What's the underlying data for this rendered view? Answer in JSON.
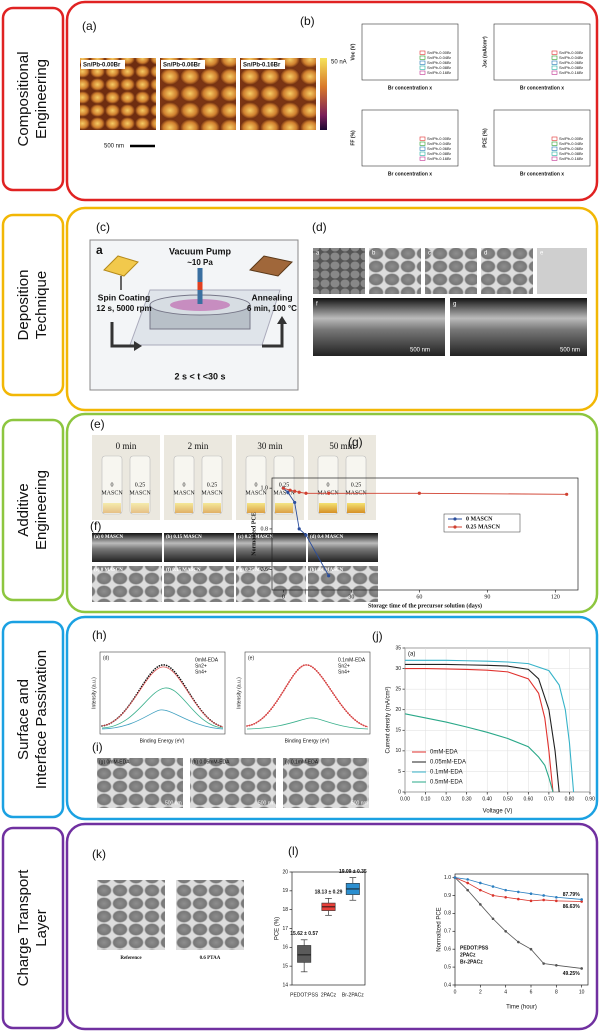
{
  "sections": [
    {
      "label": [
        "Compositional",
        "Engineering"
      ],
      "color": "#e02222"
    },
    {
      "label": [
        "Deposition",
        "Technique"
      ],
      "color": "#f2b705"
    },
    {
      "label": [
        "Additive",
        "Engineering"
      ],
      "color": "#8dc63f"
    },
    {
      "label": [
        "Surface and",
        "Interface Passivation"
      ],
      "color": "#1ba1e2"
    },
    {
      "label": [
        "Charge Transport",
        "Layer"
      ],
      "color": "#7030a0"
    }
  ],
  "panels": {
    "a": {
      "letter": "(a)",
      "images": [
        "Sn/Pb-0.00Br",
        "Sn/Pb-0.06Br",
        "Sn/Pb-0.16Br"
      ],
      "scale_bar": "500 nm",
      "colorbar": "50 nA"
    },
    "b": {
      "letter": "(b)",
      "y_labels": [
        "Voc (V)",
        "Jsc (mA/cm²)",
        "FF (%)",
        "PCE (%)"
      ],
      "x_label": "Br concentration x",
      "legend": [
        "Sn/Pb-0.00Br",
        "Sn/Pb-0.04Br",
        "Sn/Pb-0.06Br",
        "Sn/Pb-0.08Br",
        "Sn/Pb-0.16Br"
      ],
      "legend_colors": [
        "#e03030",
        "#2ca02c",
        "#1f77b4",
        "#20b0a0",
        "#c03090"
      ]
    },
    "c": {
      "letter": "(c)",
      "tag": "a",
      "pump": "Vacuum Pump",
      "pressure": "~10 Pa",
      "step1": "Spin Coating",
      "step1_detail": "12 s, 5000 rpm",
      "step2": "Annealing",
      "step2_detail": "6 min, 100 °C",
      "time": "2 s < t <30 s"
    },
    "d": {
      "letter": "(d)",
      "tags": [
        "a",
        "b",
        "c",
        "d",
        "e",
        "f",
        "g"
      ],
      "scale_bar": "500 nm"
    },
    "e": {
      "letter": "(e)",
      "tag": "(a)",
      "times": [
        "0 min",
        "2 min",
        "30 min",
        "50 min"
      ],
      "vials": [
        "0",
        "0.25"
      ],
      "unit": "MASCN"
    },
    "f": {
      "letter": "(f)",
      "images": [
        "(a) 0 MASCN",
        "(b) 0.15 MASCN",
        "(c) 0.25 MASCN",
        "(d) 0.4 MASCN",
        "(e) 0 MASCN",
        "(f) 0.15 MASCN",
        "(g) 0.25 MASCN",
        "(h) 0.4 MASCN"
      ]
    },
    "g": {
      "letter": "(g)"
    },
    "h": {
      "letter": "(h)",
      "tags": [
        "(d)",
        "(e)"
      ],
      "legends": [
        [
          "0mM-EDA",
          "Sn2+",
          "Sn4+"
        ],
        [
          "0.1mM-EDA",
          "Sn2+",
          "Sn4+"
        ]
      ],
      "x_label": "Binding Energy (eV)",
      "y_label": "Intensity (a.u.)"
    },
    "i": {
      "letter": "(i)",
      "images": [
        "(g) 0mM-EDA",
        "(h) 0.05mM-EDA",
        "(i) 0.1mM-EDA"
      ],
      "scale_bar": "500 nm"
    },
    "j": {
      "letter": "(j)"
    },
    "k": {
      "letter": "(k)",
      "images": [
        "Reference",
        "0.6 PTAA"
      ]
    },
    "l": {
      "letter": "(l)"
    }
  },
  "chart_data": [
    {
      "type": "line",
      "x_label": "Storage time of the precursor solution (days)",
      "y_label": "Normalized PCE",
      "xlim": [
        -5,
        130
      ],
      "ylim": [
        0.5,
        1.05
      ],
      "xticks": [
        0,
        30,
        60,
        90,
        120
      ],
      "yticks": [
        0.6,
        0.8,
        {
          "value": 1.0,
          "label": "1.0"
        }
      ],
      "series": [
        {
          "name": "0 MASCN",
          "color": "#2a4d9c",
          "x": [
            0,
            2,
            5,
            7,
            10,
            20
          ],
          "values": [
            1.0,
            0.98,
            0.93,
            0.8,
            0.77,
            0.57
          ]
        },
        {
          "name": "0.25 MASCN",
          "color": "#d04030",
          "x": [
            0,
            3,
            5,
            7,
            10,
            20,
            60,
            125
          ],
          "values": [
            1.0,
            0.99,
            0.985,
            0.98,
            0.975,
            0.975,
            0.975,
            0.97
          ]
        }
      ]
    },
    {
      "type": "line",
      "tag": "(a)",
      "x_label": "Voltage (V)",
      "y_label": "Current density (mA/cm²)",
      "xlim": [
        0,
        0.9
      ],
      "ylim": [
        0,
        35
      ],
      "xticks": [
        {
          "value": 0,
          "label": "0.00"
        },
        {
          "value": 0.1,
          "label": "0.10"
        },
        {
          "value": 0.2,
          "label": "0.20"
        },
        {
          "value": 0.3,
          "label": "0.30"
        },
        {
          "value": 0.4,
          "label": "0.40"
        },
        {
          "value": 0.5,
          "label": "0.50"
        },
        {
          "value": 0.6,
          "label": "0.60"
        },
        {
          "value": 0.7,
          "label": "0.70"
        },
        {
          "value": 0.8,
          "label": "0.80"
        },
        {
          "value": 0.9,
          "label": "0.90"
        }
      ],
      "yticks": [
        0,
        5,
        10,
        15,
        20,
        25,
        30,
        35
      ],
      "series": [
        {
          "name": "0mM-EDA",
          "color": "#e0312d",
          "x": [
            0,
            0.1,
            0.2,
            0.3,
            0.4,
            0.5,
            0.6,
            0.65,
            0.68,
            0.7,
            0.72
          ],
          "values": [
            30,
            30,
            29.9,
            29.8,
            29.6,
            29.2,
            27.5,
            24,
            18,
            10,
            0
          ]
        },
        {
          "name": "0.05mM-EDA",
          "color": "#222222",
          "x": [
            0,
            0.1,
            0.2,
            0.3,
            0.4,
            0.5,
            0.6,
            0.65,
            0.7,
            0.73,
            0.75
          ],
          "values": [
            31,
            31,
            31,
            30.9,
            30.8,
            30.6,
            29.8,
            27.5,
            20,
            10,
            0
          ]
        },
        {
          "name": "0.1mM-EDA",
          "color": "#36b3c9",
          "x": [
            0,
            0.1,
            0.2,
            0.3,
            0.4,
            0.5,
            0.6,
            0.7,
            0.75,
            0.78,
            0.8,
            0.82
          ],
          "values": [
            32,
            32,
            32,
            31.9,
            31.8,
            31.6,
            31.2,
            29.5,
            26,
            20,
            12,
            0
          ]
        },
        {
          "name": "0.5mM-EDA",
          "color": "#2aa889",
          "x": [
            0,
            0.1,
            0.2,
            0.3,
            0.4,
            0.5,
            0.6,
            0.65,
            0.68,
            0.7,
            0.72
          ],
          "values": [
            19,
            18,
            17,
            15.8,
            14.5,
            13,
            11,
            8.5,
            6.5,
            3.5,
            0
          ]
        }
      ]
    },
    {
      "type": "box",
      "y_label": "PCE (%)",
      "categories": [
        "PEDOT:PSS",
        "2PACz",
        "Br-2PACz"
      ],
      "ylim": [
        14,
        20
      ],
      "yticks": [
        14,
        15,
        16,
        17,
        18,
        19,
        20
      ],
      "colors": [
        "#5a5a5a",
        "#e8403a",
        "#2b8fd0"
      ],
      "boxes": [
        {
          "min": 14.7,
          "q1": 15.2,
          "median": 15.6,
          "q3": 16.1,
          "max": 16.4
        },
        {
          "min": 17.7,
          "q1": 17.95,
          "median": 18.15,
          "q3": 18.35,
          "max": 18.6
        },
        {
          "min": 18.5,
          "q1": 18.8,
          "median": 19.1,
          "q3": 19.4,
          "max": 19.7
        }
      ],
      "annotations": [
        "15.62 ± 0.57",
        "18.13 ± 0.29",
        "19.09 ± 0.35"
      ]
    },
    {
      "type": "line",
      "x_label": "Time (hour)",
      "y_label": "Normalized PCE",
      "xlim": [
        0,
        10.5
      ],
      "ylim": [
        0.4,
        1.02
      ],
      "xticks": [
        0,
        2,
        4,
        6,
        8,
        10
      ],
      "yticks": [
        0.4,
        0.5,
        0.6,
        0.7,
        0.8,
        0.9,
        {
          "value": 1.0,
          "label": "1.0"
        }
      ],
      "x": [
        0,
        1,
        2,
        3,
        4,
        5,
        6,
        7,
        8,
        10
      ],
      "series": [
        {
          "name": "PEDOT:PSS",
          "color": "#555555",
          "values": [
            1.0,
            0.93,
            0.85,
            0.77,
            0.7,
            0.64,
            0.6,
            0.52,
            0.51,
            0.4925
          ],
          "value_labels": [
            null,
            null,
            null,
            null,
            null,
            null,
            null,
            null,
            null,
            "49.25%"
          ]
        },
        {
          "name": "2PACz",
          "color": "#d9342b",
          "values": [
            1.0,
            0.97,
            0.93,
            0.9,
            0.89,
            0.88,
            0.87,
            0.875,
            0.87,
            0.8663
          ],
          "value_labels": [
            null,
            null,
            null,
            null,
            null,
            null,
            null,
            null,
            null,
            "86.63%"
          ]
        },
        {
          "name": "Br-2PACz",
          "color": "#2b7fc0",
          "values": [
            1.0,
            0.99,
            0.97,
            0.95,
            0.93,
            0.92,
            0.91,
            0.9,
            0.89,
            0.8779
          ],
          "value_labels": [
            null,
            null,
            null,
            null,
            null,
            null,
            null,
            null,
            null,
            "87.79%"
          ]
        }
      ]
    }
  ]
}
